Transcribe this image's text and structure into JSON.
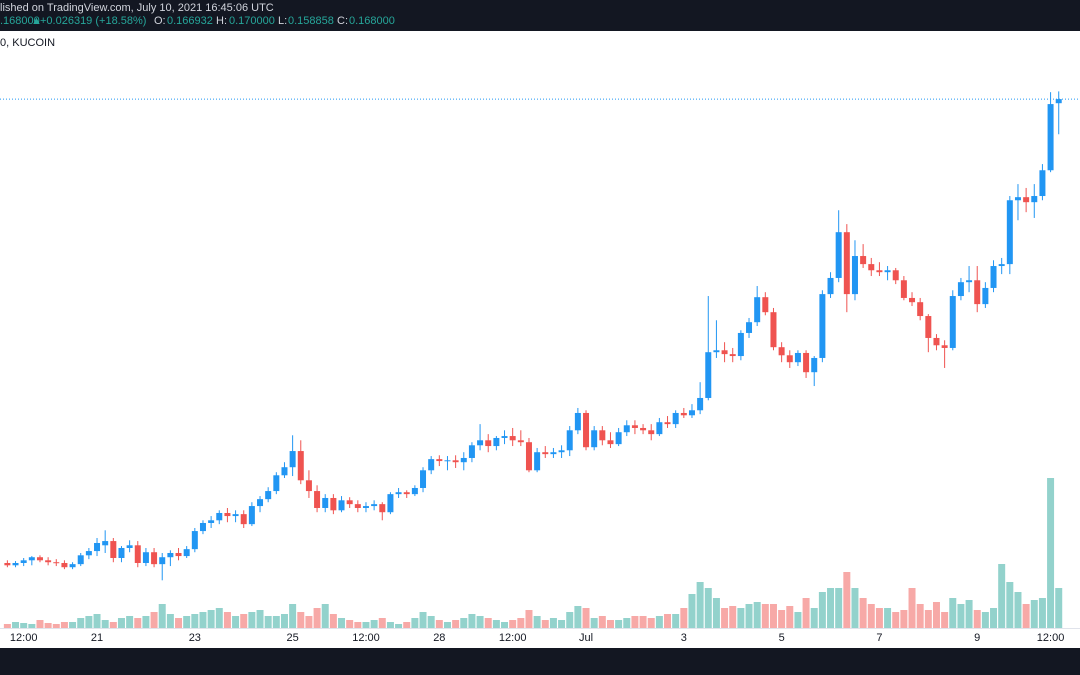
{
  "header": {
    "published": "lished on TradingView.com, July 10, 2021 16:45:06 UTC",
    "last": ".168000",
    "arrow": "▲",
    "change": "+0.026319 (+18.58%)",
    "o_label": "O:",
    "o": "0.166932",
    "h_label": "H:",
    "h": "0.170000",
    "l_label": "L:",
    "l": "0.158858",
    "c_label": "C:",
    "c": "0.168000",
    "symbol": "0, KUCOIN"
  },
  "chart_data": {
    "type": "candlestick",
    "categories": [
      null,
      null,
      "12:00",
      null,
      null,
      null,
      null,
      null,
      null,
      null,
      null,
      "21",
      null,
      null,
      null,
      null,
      null,
      null,
      null,
      null,
      null,
      null,
      null,
      "23",
      null,
      null,
      null,
      null,
      null,
      null,
      null,
      null,
      null,
      null,
      null,
      "25",
      null,
      null,
      null,
      null,
      null,
      null,
      null,
      null,
      "12:00",
      null,
      null,
      null,
      null,
      null,
      null,
      null,
      null,
      "28",
      null,
      null,
      null,
      null,
      null,
      null,
      null,
      null,
      "12:00",
      null,
      null,
      null,
      null,
      null,
      null,
      null,
      null,
      "Jul",
      null,
      null,
      null,
      null,
      null,
      null,
      null,
      null,
      null,
      null,
      null,
      "3",
      null,
      null,
      null,
      null,
      null,
      null,
      null,
      null,
      null,
      null,
      null,
      "5",
      null,
      null,
      null,
      null,
      null,
      null,
      null,
      null,
      null,
      null,
      null,
      "7",
      null,
      null,
      null,
      null,
      null,
      null,
      null,
      null,
      null,
      null,
      null,
      "9",
      null,
      null,
      null,
      null,
      null,
      null,
      null,
      null,
      "12:00",
      null
    ],
    "open": [
      0.0474,
      0.0468,
      0.0474,
      0.0481,
      0.0489,
      0.0481,
      0.0476,
      0.0474,
      0.0463,
      0.0471,
      0.0494,
      0.0505,
      0.052,
      0.0531,
      0.0487,
      0.0513,
      0.052,
      0.0474,
      0.0502,
      0.0471,
      0.0489,
      0.05,
      0.0492,
      0.051,
      0.0557,
      0.0578,
      0.0585,
      0.0604,
      0.0596,
      0.0601,
      0.0575,
      0.0622,
      0.064,
      0.0661,
      0.0702,
      0.0723,
      0.0765,
      0.0689,
      0.0661,
      0.0617,
      0.0643,
      0.0611,
      0.0637,
      0.0627,
      0.0617,
      0.0622,
      0.0627,
      0.0606,
      0.0653,
      0.0658,
      0.0653,
      0.0669,
      0.0715,
      0.0744,
      0.0739,
      0.0741,
      0.0736,
      0.0747,
      0.078,
      0.0793,
      0.0778,
      0.0799,
      0.0804,
      0.0793,
      0.0788,
      0.0715,
      0.0762,
      0.0757,
      0.0762,
      0.0767,
      0.0819,
      0.0864,
      0.0775,
      0.0819,
      0.0793,
      0.0783,
      0.0814,
      0.0832,
      0.0825,
      0.0819,
      0.0809,
      0.084,
      0.0835,
      0.0864,
      0.0858,
      0.0871,
      0.0903,
      0.1022,
      0.1027,
      0.1017,
      0.1012,
      0.1072,
      0.11,
      0.1165,
      0.1126,
      0.1035,
      0.1014,
      0.0996,
      0.102,
      0.097,
      0.1007,
      0.1173,
      0.1215,
      0.1334,
      0.1173,
      0.1272,
      0.1251,
      0.1235,
      0.123,
      0.1235,
      0.1209,
      0.1163,
      0.1152,
      0.1116,
      0.1059,
      0.104,
      0.1033,
      0.1168,
      0.1204,
      0.1209,
      0.1147,
      0.1189,
      0.1246,
      0.1251,
      0.1417,
      0.1425,
      0.1412,
      0.1428,
      0.1495,
      0.166932
    ],
    "high": [
      0.0481,
      0.0479,
      0.0487,
      0.0492,
      0.0494,
      0.0489,
      0.0484,
      0.0481,
      0.0476,
      0.05,
      0.0513,
      0.0539,
      0.0559,
      0.0539,
      0.0518,
      0.0533,
      0.0531,
      0.0513,
      0.0513,
      0.05,
      0.0507,
      0.0513,
      0.0518,
      0.0565,
      0.0585,
      0.0596,
      0.0611,
      0.0617,
      0.0611,
      0.0611,
      0.0632,
      0.0648,
      0.0671,
      0.071,
      0.0736,
      0.0806,
      0.0793,
      0.0715,
      0.0676,
      0.0653,
      0.0653,
      0.0648,
      0.0645,
      0.0637,
      0.0632,
      0.0637,
      0.0632,
      0.0658,
      0.0669,
      0.0663,
      0.0676,
      0.0723,
      0.0752,
      0.0754,
      0.0752,
      0.0754,
      0.0762,
      0.0788,
      0.0835,
      0.0809,
      0.0804,
      0.0819,
      0.0825,
      0.0819,
      0.0799,
      0.0773,
      0.0778,
      0.0773,
      0.078,
      0.083,
      0.0877,
      0.0871,
      0.083,
      0.083,
      0.0814,
      0.0825,
      0.0845,
      0.0845,
      0.0835,
      0.0835,
      0.0851,
      0.0856,
      0.0871,
      0.0877,
      0.0887,
      0.0944,
      0.1168,
      0.1105,
      0.1048,
      0.1033,
      0.1079,
      0.1111,
      0.1194,
      0.1178,
      0.1137,
      0.1048,
      0.1027,
      0.1027,
      0.1027,
      0.1012,
      0.1183,
      0.123,
      0.1391,
      0.1355,
      0.1313,
      0.1303,
      0.1267,
      0.1256,
      0.1246,
      0.1241,
      0.122,
      0.1178,
      0.1163,
      0.1121,
      0.1069,
      0.1053,
      0.1183,
      0.1215,
      0.1246,
      0.1246,
      0.1204,
      0.1261,
      0.1267,
      0.1428,
      0.1459,
      0.1449,
      0.1459,
      0.1511,
      0.1698,
      0.17
    ],
    "low": [
      0.0463,
      0.0463,
      0.0466,
      0.0468,
      0.0476,
      0.0468,
      0.0466,
      0.0458,
      0.0458,
      0.0466,
      0.0484,
      0.0492,
      0.05,
      0.0476,
      0.0476,
      0.0502,
      0.0463,
      0.0466,
      0.0463,
      0.0429,
      0.0466,
      0.0481,
      0.0487,
      0.0502,
      0.0549,
      0.0565,
      0.0575,
      0.058,
      0.058,
      0.0565,
      0.057,
      0.0606,
      0.0632,
      0.0653,
      0.0695,
      0.07,
      0.0679,
      0.0643,
      0.0606,
      0.0606,
      0.0601,
      0.0606,
      0.0617,
      0.0606,
      0.0606,
      0.0611,
      0.0585,
      0.0601,
      0.0643,
      0.0643,
      0.0648,
      0.0658,
      0.0705,
      0.0726,
      0.0715,
      0.0721,
      0.0715,
      0.0736,
      0.0767,
      0.0762,
      0.0767,
      0.0783,
      0.0778,
      0.0778,
      0.071,
      0.071,
      0.0747,
      0.0747,
      0.0747,
      0.0752,
      0.0809,
      0.0767,
      0.0767,
      0.078,
      0.0773,
      0.0778,
      0.0804,
      0.0809,
      0.0809,
      0.0793,
      0.0804,
      0.0825,
      0.0825,
      0.0851,
      0.0851,
      0.0861,
      0.0897,
      0.1007,
      0.0996,
      0.0996,
      0.1001,
      0.1059,
      0.109,
      0.1118,
      0.1027,
      0.0996,
      0.0981,
      0.0986,
      0.0955,
      0.0934,
      0.0996,
      0.1163,
      0.1204,
      0.1126,
      0.1157,
      0.1241,
      0.122,
      0.122,
      0.1209,
      0.1199,
      0.1157,
      0.1142,
      0.1105,
      0.1022,
      0.1027,
      0.0981,
      0.1027,
      0.1157,
      0.1178,
      0.1126,
      0.1137,
      0.1178,
      0.1225,
      0.1225,
      0.1365,
      0.1386,
      0.1371,
      0.1417,
      0.149,
      0.158858
    ],
    "close": [
      0.0468,
      0.0474,
      0.0481,
      0.0489,
      0.0481,
      0.0476,
      0.0474,
      0.0463,
      0.0471,
      0.0494,
      0.0505,
      0.0526,
      0.0531,
      0.0487,
      0.0513,
      0.052,
      0.0474,
      0.0502,
      0.0471,
      0.0489,
      0.05,
      0.0492,
      0.051,
      0.0557,
      0.0578,
      0.0585,
      0.0604,
      0.0596,
      0.0601,
      0.0575,
      0.0622,
      0.064,
      0.0661,
      0.0702,
      0.0723,
      0.0765,
      0.0689,
      0.0661,
      0.0617,
      0.0643,
      0.0611,
      0.0637,
      0.0627,
      0.0617,
      0.0622,
      0.0627,
      0.0606,
      0.0653,
      0.0658,
      0.0653,
      0.0669,
      0.0715,
      0.0744,
      0.0739,
      0.0741,
      0.0736,
      0.0747,
      0.078,
      0.0793,
      0.0778,
      0.0799,
      0.0804,
      0.0793,
      0.0788,
      0.0715,
      0.0762,
      0.0757,
      0.0762,
      0.0767,
      0.0819,
      0.0864,
      0.0775,
      0.0819,
      0.0793,
      0.0783,
      0.0814,
      0.0832,
      0.0825,
      0.0819,
      0.0809,
      0.084,
      0.0835,
      0.0864,
      0.0858,
      0.0871,
      0.0903,
      0.1022,
      0.1027,
      0.1017,
      0.1012,
      0.1072,
      0.11,
      0.1165,
      0.1126,
      0.1035,
      0.1014,
      0.0996,
      0.102,
      0.097,
      0.1007,
      0.1173,
      0.1215,
      0.1334,
      0.1173,
      0.1272,
      0.1251,
      0.1235,
      0.123,
      0.1235,
      0.1209,
      0.1163,
      0.1152,
      0.1116,
      0.1059,
      0.104,
      0.1033,
      0.1168,
      0.1204,
      0.1209,
      0.1147,
      0.1189,
      0.1246,
      0.1251,
      0.1417,
      0.1425,
      0.1412,
      0.1428,
      0.1495,
      0.1667,
      0.168
    ],
    "volume": [
      4,
      6,
      5,
      4,
      8,
      5,
      4,
      6,
      6,
      10,
      12,
      14,
      8,
      6,
      10,
      12,
      10,
      12,
      16,
      24,
      14,
      10,
      12,
      14,
      16,
      18,
      20,
      16,
      12,
      14,
      16,
      18,
      12,
      12,
      14,
      24,
      16,
      12,
      20,
      24,
      14,
      10,
      8,
      6,
      6,
      8,
      10,
      6,
      4,
      6,
      10,
      16,
      12,
      8,
      6,
      8,
      10,
      14,
      12,
      10,
      8,
      6,
      8,
      10,
      18,
      12,
      8,
      10,
      8,
      16,
      22,
      20,
      10,
      12,
      8,
      8,
      10,
      12,
      12,
      10,
      12,
      14,
      14,
      20,
      34,
      46,
      40,
      30,
      20,
      22,
      20,
      24,
      26,
      24,
      24,
      18,
      22,
      16,
      30,
      20,
      36,
      40,
      40,
      56,
      40,
      30,
      24,
      20,
      20,
      16,
      18,
      40,
      24,
      18,
      26,
      16,
      30,
      24,
      28,
      18,
      16,
      20,
      64,
      46,
      36,
      24,
      28,
      30,
      150,
      40
    ],
    "ylim": [
      0.0305,
      0.1857
    ],
    "y2lim": [
      0,
      597
    ],
    "up_color": "#2196f3",
    "down_color": "#ef5350",
    "volume_up_color": "#93d2cc",
    "volume_down_color": "#f7a9a7",
    "last_price_line": true
  }
}
